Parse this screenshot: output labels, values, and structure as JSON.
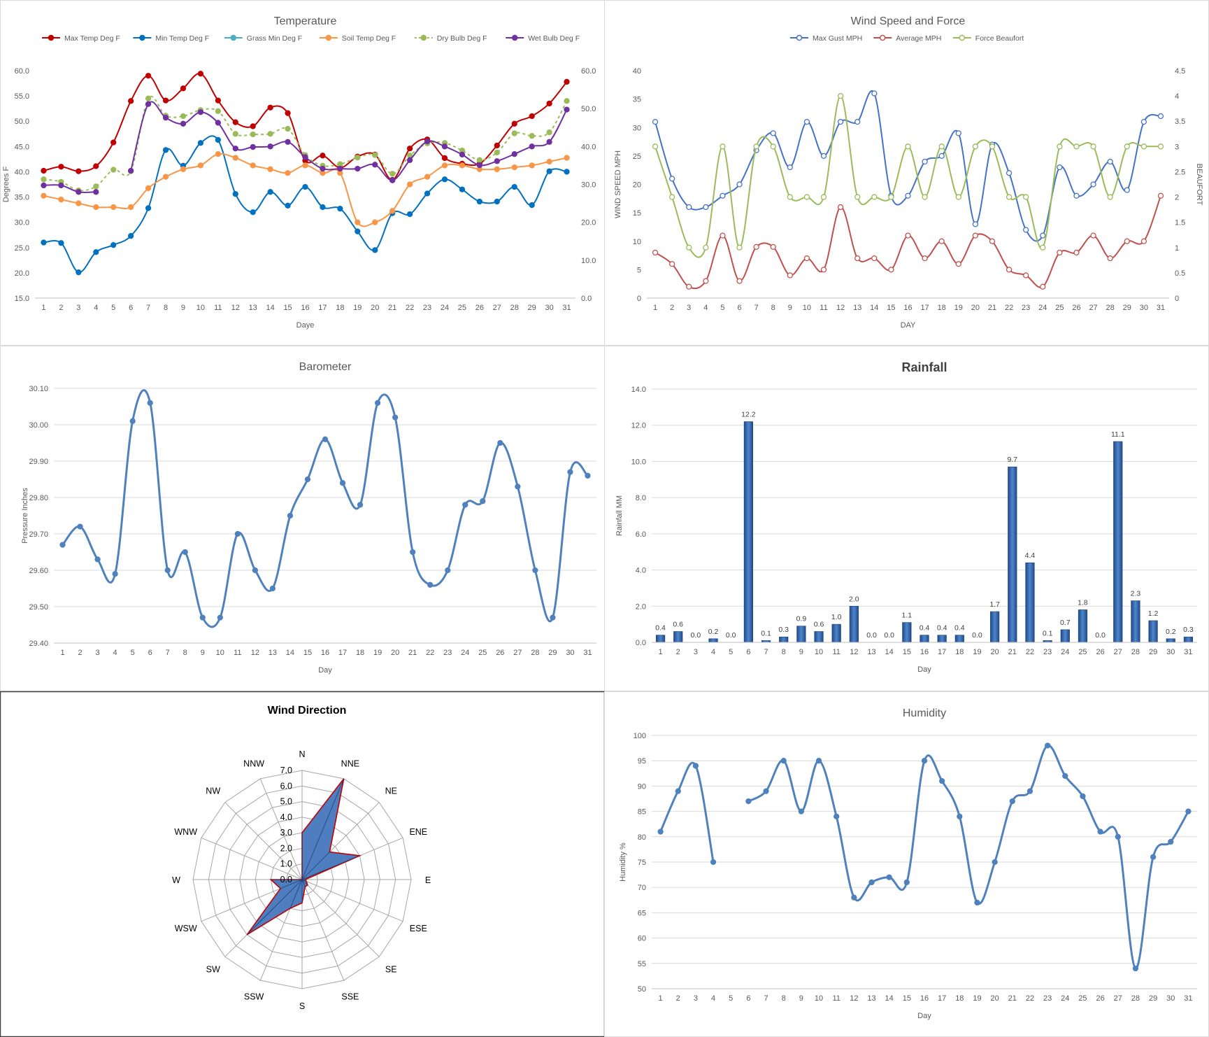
{
  "days": [
    "1",
    "2",
    "3",
    "4",
    "5",
    "6",
    "7",
    "8",
    "9",
    "10",
    "11",
    "12",
    "13",
    "14",
    "15",
    "16",
    "17",
    "18",
    "19",
    "20",
    "21",
    "22",
    "23",
    "24",
    "25",
    "26",
    "27",
    "28",
    "29",
    "30",
    "31"
  ],
  "chart_data": [
    {
      "id": "temperature",
      "type": "line",
      "title": "Temperature",
      "xlabel": "Daye",
      "ylabel": "Degrees F",
      "ylim": [
        15,
        60
      ],
      "y2lim": [
        0,
        60
      ],
      "yticks": [
        "15.0",
        "20.0",
        "25.0",
        "30.0",
        "35.0",
        "40.0",
        "45.0",
        "50.0",
        "55.0",
        "60.0"
      ],
      "y2ticks": [
        "0.0",
        "10.0",
        "20.0",
        "30.0",
        "40.0",
        "50.0",
        "60.0"
      ],
      "legend": "top",
      "grid": false,
      "series": [
        {
          "name": "Max Temp Deg F",
          "color": "#C00000",
          "axis": "y",
          "values": [
            40.2,
            41.0,
            40.1,
            41.1,
            45.8,
            54.0,
            59.0,
            54.1,
            56.5,
            59.4,
            54.1,
            49.8,
            49.0,
            52.7,
            51.6,
            42.2,
            43.2,
            40.8,
            43.0,
            43.4,
            38.4,
            44.6,
            46.4,
            42.7,
            41.6,
            41.6,
            45.2,
            49.5,
            51.0,
            53.5,
            57.8
          ]
        },
        {
          "name": "Min Temp Deg F",
          "color": "#0070C0",
          "axis": "y",
          "values": [
            26.0,
            25.9,
            20.1,
            24.1,
            25.5,
            27.3,
            32.8,
            44.3,
            41.2,
            45.7,
            46.3,
            35.6,
            32.0,
            36.0,
            33.3,
            37.0,
            33.0,
            32.7,
            28.2,
            24.5,
            31.8,
            31.6,
            35.7,
            38.5,
            36.5,
            34.1,
            34.1,
            37.0,
            33.4,
            40.1,
            40.0
          ]
        },
        {
          "name": "Grass Min Deg F",
          "color": "#4BACC6",
          "axis": "y",
          "values": []
        },
        {
          "name": "Soil Temp Deg F",
          "color": "#F79646",
          "axis": "y2",
          "values": [
            27,
            26,
            25,
            24,
            24,
            24,
            29,
            32,
            34,
            35,
            38,
            37,
            35,
            34,
            33,
            35,
            33,
            33,
            20,
            20,
            23,
            30,
            32,
            35,
            35,
            34,
            34,
            34.5,
            35,
            36,
            37
          ]
        },
        {
          "name": "Dry Bulb Deg F",
          "color": "#9BBB59",
          "axis": "y",
          "dashed": true,
          "values": [
            38.5,
            38.0,
            36.3,
            37.1,
            40.4,
            40.1,
            54.5,
            51.1,
            51.0,
            52.2,
            52.0,
            47.5,
            47.4,
            47.5,
            48.5,
            43.3,
            41.2,
            41.5,
            42.8,
            43.3,
            39.6,
            43.2,
            45.6,
            45.7,
            44.2,
            42.3,
            43.8,
            47.6,
            47.1,
            47.8,
            54.0
          ]
        },
        {
          "name": "Wet Bulb Deg F",
          "color": "#7030A0",
          "axis": "y",
          "values": [
            37.3,
            37.3,
            36.0,
            36.0,
            null,
            40.2,
            53.4,
            50.7,
            49.5,
            51.8,
            49.7,
            44.6,
            44.9,
            45.0,
            45.9,
            42.9,
            40.6,
            40.6,
            40.6,
            41.4,
            38.3,
            42.3,
            46.0,
            45.0,
            43.4,
            41.3,
            42.1,
            43.5,
            45.0,
            45.9,
            52.3
          ]
        }
      ]
    },
    {
      "id": "wind",
      "type": "line",
      "title": "Wind Speed and Force",
      "xlabel": "DAY",
      "ylabel": "WIND SPEED MPH",
      "y2label": "BEAUFORT",
      "ylim": [
        0,
        40
      ],
      "y2lim": [
        0,
        4.5
      ],
      "yticks": [
        "0",
        "5",
        "10",
        "15",
        "20",
        "25",
        "30",
        "35",
        "40"
      ],
      "y2ticks": [
        "0",
        "0.5",
        "1",
        "1.5",
        "2",
        "2.5",
        "3",
        "3.5",
        "4",
        "4.5"
      ],
      "legend": "top",
      "grid": false,
      "series": [
        {
          "name": "Max Gust MPH",
          "color": "#4472C4",
          "axis": "y",
          "values": [
            31,
            21,
            16,
            16,
            18,
            20,
            26,
            29,
            23,
            31,
            25,
            31,
            31,
            36,
            18,
            18,
            24,
            25,
            29,
            13,
            27,
            22,
            12,
            11,
            23,
            18,
            20,
            24,
            19,
            31,
            32
          ]
        },
        {
          "name": "Average MPH",
          "color": "#C0504D",
          "axis": "y",
          "values": [
            8,
            6,
            2,
            3,
            11,
            3,
            9,
            9,
            4,
            7,
            5,
            16,
            7,
            7,
            5,
            11,
            7,
            10,
            6,
            11,
            10,
            5,
            4,
            2,
            8,
            8,
            11,
            7,
            10,
            10,
            18
          ]
        },
        {
          "name": "Force Beaufort",
          "color": "#9BBB59",
          "axis": "y2",
          "values": [
            3,
            2,
            1,
            1,
            3,
            1,
            3,
            3,
            2,
            2,
            2,
            4,
            2,
            2,
            2,
            3,
            2,
            3,
            2,
            3,
            3,
            2,
            2,
            1,
            3,
            3,
            3,
            2,
            3,
            3,
            3
          ]
        }
      ]
    },
    {
      "id": "barometer",
      "type": "line",
      "title": "Barometer",
      "xlabel": "Day",
      "ylabel": "Pressure Inches",
      "ylim": [
        29.4,
        30.1
      ],
      "yticks": [
        "29.40",
        "29.50",
        "29.60",
        "29.70",
        "29.80",
        "29.90",
        "30.00",
        "30.10"
      ],
      "grid": true,
      "series": [
        {
          "name": "",
          "color": "#4F81BD",
          "values": [
            29.67,
            29.72,
            29.63,
            29.59,
            30.01,
            30.06,
            29.6,
            29.65,
            29.47,
            29.47,
            29.7,
            29.6,
            29.55,
            29.75,
            29.85,
            29.96,
            29.84,
            29.78,
            30.06,
            30.02,
            29.65,
            29.56,
            29.6,
            29.78,
            29.79,
            29.95,
            29.83,
            29.6,
            29.47,
            29.87,
            29.86
          ]
        }
      ]
    },
    {
      "id": "rainfall",
      "type": "bar",
      "title": "Rainfall",
      "xlabel": "Day",
      "ylabel": "Rainfall MM",
      "ylim": [
        0,
        14
      ],
      "yticks": [
        "0.0",
        "2.0",
        "4.0",
        "6.0",
        "8.0",
        "10.0",
        "12.0",
        "14.0"
      ],
      "grid": true,
      "color": "#2E5FA8",
      "values": [
        0.4,
        0.6,
        0.0,
        0.2,
        0.0,
        12.2,
        0.1,
        0.3,
        0.9,
        0.6,
        1.0,
        2.0,
        0.0,
        0.0,
        1.1,
        0.4,
        0.4,
        0.4,
        0.0,
        1.7,
        9.7,
        4.4,
        0.1,
        0.7,
        1.8,
        0.0,
        11.1,
        2.3,
        1.2,
        0.2,
        0.3
      ],
      "labels": [
        "0.4",
        "0.6",
        "0.0",
        "0.2",
        "0.0",
        "12.2",
        "0.1",
        "0.3",
        "0.9",
        "0.6",
        "1.0",
        "2.0",
        "0.0",
        "0.0",
        "1.1",
        "0.4",
        "0.4",
        "0.4",
        "0.0",
        "1.7",
        "9.7",
        "4.4",
        "0.1",
        "0.7",
        "1.8",
        "0.0",
        "11.1",
        "2.3",
        "1.2",
        "0.2",
        "0.3"
      ]
    },
    {
      "id": "wind-direction",
      "type": "radar",
      "title": "Wind Direction",
      "rlim": [
        0,
        7
      ],
      "rticks": [
        "0.0",
        "1.0",
        "2.0",
        "3.0",
        "4.0",
        "5.0",
        "6.0",
        "7.0"
      ],
      "categories": [
        "N",
        "NNE",
        "NE",
        "ENE",
        "E",
        "ESE",
        "SE",
        "SSE",
        "S",
        "SSW",
        "SW",
        "WSW",
        "W",
        "WNW",
        "NW",
        "NNW"
      ],
      "values": [
        3,
        7,
        2.5,
        4,
        0.2,
        0.3,
        0.5,
        0.5,
        1.5,
        2,
        5,
        1.5,
        2,
        0,
        0,
        0
      ],
      "fill": "#4F7EC0",
      "stroke": "#C00000"
    },
    {
      "id": "humidity",
      "type": "line",
      "title": "Humidity",
      "xlabel": "Day",
      "ylabel": "Humidity %",
      "ylim": [
        50,
        100
      ],
      "yticks": [
        "50",
        "55",
        "60",
        "65",
        "70",
        "75",
        "80",
        "85",
        "90",
        "95",
        "100"
      ],
      "grid": true,
      "series": [
        {
          "name": "",
          "color": "#4F81BD",
          "values": [
            81,
            89,
            94,
            75,
            null,
            87,
            89,
            95,
            85,
            95,
            84,
            68,
            71,
            72,
            71,
            95,
            91,
            84,
            67,
            75,
            87,
            89,
            98,
            92,
            88,
            81,
            80,
            54,
            76,
            79,
            85
          ]
        }
      ]
    }
  ]
}
